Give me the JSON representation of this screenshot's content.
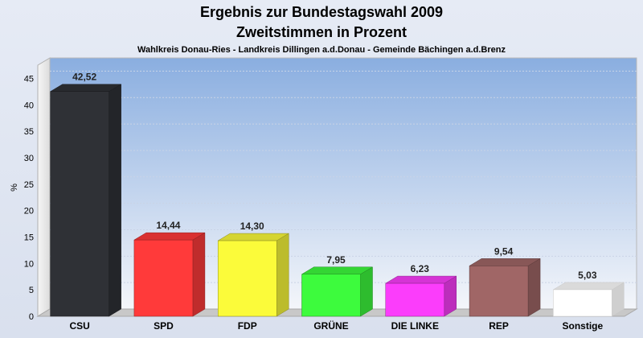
{
  "chart_data": {
    "type": "bar",
    "title": "Ergebnis zur Bundestagswahl 2009",
    "title2": "Zweitstimmen in Prozent",
    "subtitle": "Wahlkreis Donau-Ries - Landkreis Dillingen a.d.Donau - Gemeinde Bächingen a.d.Brenz",
    "ylabel": "%",
    "xlabel": "",
    "ylim": [
      0,
      47.5
    ],
    "yticks": [
      "0",
      "5",
      "10",
      "15",
      "20",
      "25",
      "30",
      "35",
      "40",
      "45"
    ],
    "grid": true,
    "categories": [
      "CSU",
      "SPD",
      "FDP",
      "GRÜNE",
      "DIE LINKE",
      "REP",
      "Sonstige"
    ],
    "values": [
      42.52,
      14.44,
      14.3,
      7.95,
      6.23,
      9.54,
      5.03
    ],
    "value_labels": [
      "42,52",
      "14,44",
      "14,30",
      "7,95",
      "6,23",
      "9,54",
      "5,03"
    ],
    "colors": [
      "#2f3136",
      "#ff3a3a",
      "#fbfb3a",
      "#3dfb3d",
      "#fb3dfb",
      "#a06666",
      "#ffffff"
    ]
  }
}
